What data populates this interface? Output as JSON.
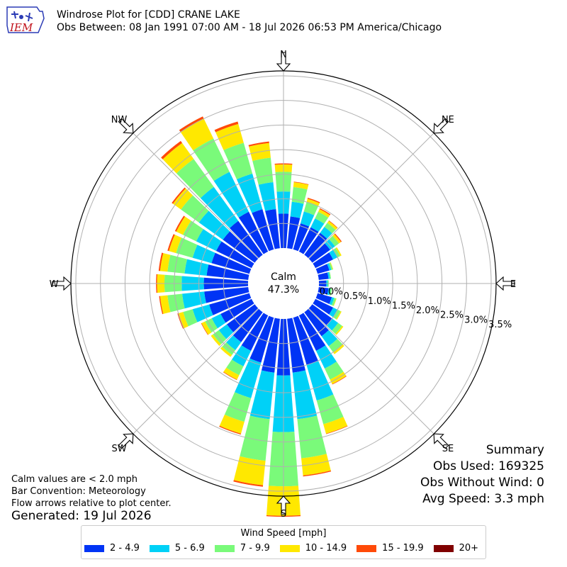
{
  "title_lines": [
    "Windrose Plot for [CDD] CRANE LAKE",
    "Obs Between: 08 Jan 1991 07:00 AM - 18 Jul 2026 06:53 PM America/Chicago"
  ],
  "logo_text": "IEM",
  "notes": [
    "Calm values are < 2.0 mph",
    "Bar Convention: Meteorology",
    "Flow arrows relative to plot center."
  ],
  "generated": "Generated: 19 Jul 2026",
  "summary": {
    "heading": "Summary",
    "obs_used": "Obs Used: 169325",
    "obs_without_wind": "Obs Without Wind: 0",
    "avg_speed": "Avg Speed: 3.3 mph"
  },
  "calm": {
    "label": "Calm",
    "value": "47.3%"
  },
  "chart_data": {
    "type": "windrose",
    "convention": "meteorology",
    "directions": [
      "N",
      "NE",
      "E",
      "SE",
      "S",
      "SW",
      "W",
      "NW"
    ],
    "radial_ticks": [
      "0.0%",
      "0.5%",
      "1.0%",
      "1.5%",
      "2.0%",
      "2.5%",
      "3.0%",
      "3.5%"
    ],
    "radial_max": 3.6,
    "legend_title": "Wind Speed [mph]",
    "bins": [
      {
        "label": "2 - 4.9",
        "color": "#0034f5"
      },
      {
        "label": "5 - 6.9",
        "color": "#00d1f7"
      },
      {
        "label": "7 - 9.9",
        "color": "#7afa7a"
      },
      {
        "label": "10 - 14.9",
        "color": "#ffe800"
      },
      {
        "label": "15 - 19.9",
        "color": "#ff4a08"
      },
      {
        "label": "20+",
        "color": "#800000"
      }
    ],
    "sectors": [
      {
        "dir": 0,
        "values": [
          0.7,
          0.45,
          0.4,
          0.15,
          0.02,
          0.0
        ]
      },
      {
        "dir": 10,
        "values": [
          0.65,
          0.3,
          0.3,
          0.1,
          0.01,
          0.0
        ]
      },
      {
        "dir": 20,
        "values": [
          0.55,
          0.25,
          0.2,
          0.07,
          0.02,
          0.0
        ]
      },
      {
        "dir": 30,
        "values": [
          0.55,
          0.2,
          0.15,
          0.06,
          0.02,
          0.0
        ]
      },
      {
        "dir": 40,
        "values": [
          0.55,
          0.15,
          0.1,
          0.05,
          0.01,
          0.0
        ]
      },
      {
        "dir": 50,
        "values": [
          0.45,
          0.12,
          0.1,
          0.05,
          0.02,
          0.0
        ]
      },
      {
        "dir": 60,
        "values": [
          0.4,
          0.1,
          0.06,
          0.03,
          0.0,
          0.0
        ]
      },
      {
        "dir": 70,
        "values": [
          0.25,
          0.04,
          0.03,
          0.01,
          0.0,
          0.0
        ]
      },
      {
        "dir": 80,
        "values": [
          0.2,
          0.03,
          0.02,
          0.0,
          0.0,
          0.0
        ]
      },
      {
        "dir": 90,
        "values": [
          0.15,
          0.03,
          0.02,
          0.0,
          0.0,
          0.0
        ]
      },
      {
        "dir": 100,
        "values": [
          0.2,
          0.04,
          0.03,
          0.0,
          0.0,
          0.0
        ]
      },
      {
        "dir": 110,
        "values": [
          0.3,
          0.05,
          0.04,
          0.01,
          0.0,
          0.0
        ]
      },
      {
        "dir": 120,
        "values": [
          0.4,
          0.1,
          0.07,
          0.02,
          0.0,
          0.0
        ]
      },
      {
        "dir": 130,
        "values": [
          0.5,
          0.15,
          0.1,
          0.03,
          0.0,
          0.0
        ]
      },
      {
        "dir": 140,
        "values": [
          0.6,
          0.25,
          0.15,
          0.05,
          0.0,
          0.0
        ]
      },
      {
        "dir": 150,
        "values": [
          0.8,
          0.4,
          0.25,
          0.1,
          0.01,
          0.0
        ]
      },
      {
        "dir": 160,
        "values": [
          1.0,
          0.75,
          0.5,
          0.2,
          0.01,
          0.0
        ]
      },
      {
        "dir": 170,
        "values": [
          1.1,
          0.95,
          0.8,
          0.35,
          0.02,
          0.0
        ]
      },
      {
        "dir": 180,
        "values": [
          1.15,
          1.15,
          1.1,
          0.6,
          0.02,
          0.0
        ]
      },
      {
        "dir": 190,
        "values": [
          1.1,
          0.95,
          0.85,
          0.5,
          0.03,
          0.0
        ]
      },
      {
        "dir": 200,
        "values": [
          0.95,
          0.75,
          0.5,
          0.25,
          0.02,
          0.0
        ]
      },
      {
        "dir": 210,
        "values": [
          0.8,
          0.35,
          0.2,
          0.1,
          0.01,
          0.0
        ]
      },
      {
        "dir": 220,
        "values": [
          0.75,
          0.2,
          0.12,
          0.05,
          0.0,
          0.0
        ]
      },
      {
        "dir": 230,
        "values": [
          0.7,
          0.2,
          0.15,
          0.05,
          0.0,
          0.0
        ]
      },
      {
        "dir": 240,
        "values": [
          0.7,
          0.2,
          0.15,
          0.08,
          0.01,
          0.0
        ]
      },
      {
        "dir": 250,
        "values": [
          0.85,
          0.35,
          0.2,
          0.1,
          0.02,
          0.0
        ]
      },
      {
        "dir": 260,
        "values": [
          0.9,
          0.45,
          0.3,
          0.15,
          0.02,
          0.0
        ]
      },
      {
        "dir": 270,
        "values": [
          0.9,
          0.45,
          0.35,
          0.15,
          0.02,
          0.0
        ]
      },
      {
        "dir": 280,
        "values": [
          0.85,
          0.45,
          0.35,
          0.15,
          0.03,
          0.0
        ]
      },
      {
        "dir": 290,
        "values": [
          0.8,
          0.4,
          0.35,
          0.15,
          0.03,
          0.0
        ]
      },
      {
        "dir": 300,
        "values": [
          0.8,
          0.45,
          0.3,
          0.15,
          0.03,
          0.0
        ]
      },
      {
        "dir": 310,
        "values": [
          0.8,
          0.6,
          0.45,
          0.2,
          0.03,
          0.0
        ]
      },
      {
        "dir": 320,
        "values": [
          0.85,
          0.85,
          0.7,
          0.4,
          0.05,
          0.0
        ]
      },
      {
        "dir": 330,
        "values": [
          0.9,
          0.9,
          0.75,
          0.45,
          0.05,
          0.0
        ]
      },
      {
        "dir": 340,
        "values": [
          0.85,
          0.75,
          0.65,
          0.4,
          0.05,
          0.0
        ]
      },
      {
        "dir": 350,
        "values": [
          0.8,
          0.55,
          0.5,
          0.3,
          0.03,
          0.0
        ]
      }
    ]
  }
}
